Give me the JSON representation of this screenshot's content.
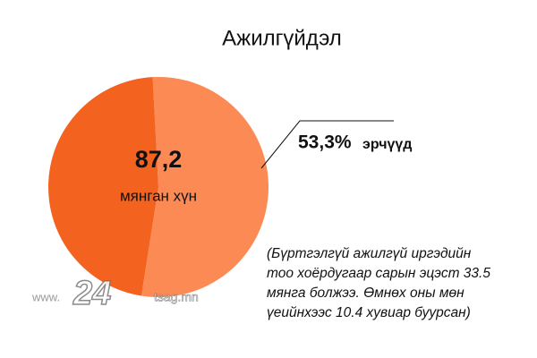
{
  "chart_data": {
    "type": "pie",
    "title": "Ажилгүйдэл",
    "categories": [
      "эрчүүд",
      null
    ],
    "values": [
      53.3,
      46.7
    ],
    "value_labels": [
      "53,3%",
      null
    ],
    "colors": [
      "#fb8a54",
      "#f4621f"
    ],
    "total_label": "87,2",
    "total_unit": "мянган хүн",
    "note": [
      "(Бүртгэлгүй ажилгүй иргэдийн",
      "тоо хоёрдугаар сарын эцэст 33.5",
      "мянга болжээ. Өмнөх оны мөн",
      "үеийнхээс 10.4 хувиар буурсан)"
    ]
  },
  "watermark": {
    "prefix": "www.",
    "logo": "24",
    "site": "tsag.mn"
  }
}
